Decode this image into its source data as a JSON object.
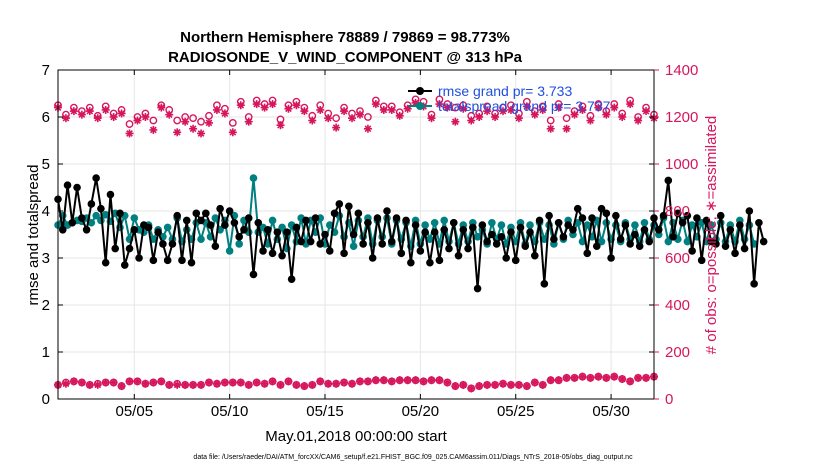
{
  "chart_data": {
    "type": "line",
    "title": "Northern Hemisphere 78889 / 79869 = 98.773%",
    "subtitle": "RADIOSONDE_V_WIND_COMPONENT @ 313 hPa",
    "xlabel": "May.01,2018 00:00:00 start",
    "ylabel": "rmse and totalspread",
    "y2label": "# of obs: o=possible; ∗=assimilated",
    "footer": "data file: /Users/raeder/DAI/ATM_forcXX/CAM6_setup/f.e21.FHIST_BGC.f09_025.CAM6assim.011/Diags_NTrS_2018-05/obs_diag_output.nc",
    "xlim": [
      1,
      32.25
    ],
    "ylim": [
      0,
      7
    ],
    "y2lim": [
      0,
      1400
    ],
    "x_ticks": [
      5,
      10,
      15,
      20,
      25,
      30
    ],
    "x_tick_labels": [
      "05/05",
      "05/10",
      "05/15",
      "05/20",
      "05/25",
      "05/30"
    ],
    "y_ticks": [
      "0",
      "1",
      "2",
      "3",
      "4",
      "5",
      "6",
      "7"
    ],
    "y2_ticks": [
      "0",
      "200",
      "400",
      "600",
      "800",
      "1000",
      "1200",
      "1400"
    ],
    "legend_position": "top-right",
    "colors": {
      "rmse": "#000000",
      "spread": "#008080",
      "obs": "#d6165c",
      "legend_text": "#1f4fe0",
      "grid": "#e6e6e6"
    },
    "legend": [
      "rmse grand pr= 3.733",
      "totalspread grand pr= 3.737"
    ],
    "rmse": [
      4.25,
      3.6,
      4.55,
      3.75,
      4.5,
      3.85,
      3.6,
      4.15,
      4.7,
      4.05,
      2.9,
      4.35,
      3.2,
      3.95,
      2.85,
      3.2,
      3.6,
      3.0,
      3.7,
      3.65,
      2.95,
      3.55,
      3.3,
      2.95,
      3.3,
      3.9,
      2.95,
      3.8,
      2.9,
      3.95,
      3.8,
      3.95,
      3.7,
      3.25,
      4.05,
      3.7,
      4.0,
      3.75,
      3.45,
      3.6,
      3.85,
      2.65,
      3.75,
      3.15,
      3.6,
      3.1,
      3.55,
      3.05,
      3.55,
      2.55,
      3.65,
      3.35,
      3.8,
      3.35,
      3.85,
      3.3,
      3.5,
      3.15,
      3.95,
      4.15,
      3.1,
      4.1,
      3.5,
      3.95,
      3.3,
      3.75,
      3.0,
      3.85,
      3.3,
      4.0,
      3.35,
      3.85,
      3.1,
      3.8,
      2.9,
      3.7,
      3.15,
      3.55,
      2.9,
      3.55,
      2.95,
      3.6,
      3.2,
      3.75,
      3.05,
      3.6,
      3.2,
      3.65,
      2.35,
      3.7,
      3.35,
      3.5,
      3.3,
      3.45,
      3.0,
      3.55,
      2.95,
      3.65,
      3.25,
      3.55,
      3.05,
      3.8,
      2.45,
      3.9,
      3.4,
      3.75,
      3.45,
      3.7,
      3.6,
      4.05,
      3.85,
      3.1,
      3.85,
      3.25,
      4.05,
      3.95,
      3.0,
      3.9,
      3.4,
      3.7,
      3.3,
      3.5,
      3.25,
      3.6,
      3.35,
      3.85,
      3.6,
      3.9,
      4.65,
      3.45,
      3.95,
      3.75,
      3.9,
      3.15,
      3.85,
      2.95,
      3.8,
      3.35,
      3.3,
      3.9,
      3.25,
      3.6,
      3.1,
      3.7,
      3.2,
      4.0,
      2.45,
      3.75,
      3.35
    ],
    "spread": [
      3.7,
      3.9,
      3.7,
      3.75,
      3.8,
      3.78,
      3.85,
      3.75,
      3.9,
      3.8,
      3.92,
      3.78,
      3.95,
      3.65,
      3.9,
      3.4,
      3.85,
      3.6,
      3.55,
      3.7,
      3.4,
      3.6,
      3.45,
      3.65,
      3.4,
      3.85,
      3.35,
      3.6,
      3.4,
      3.75,
      3.4,
      3.75,
      3.45,
      3.85,
      3.6,
      3.8,
      3.15,
      3.9,
      3.3,
      3.8,
      3.55,
      4.7,
      3.55,
      3.65,
      3.3,
      3.8,
      3.4,
      3.65,
      3.2,
      3.7,
      3.35,
      3.85,
      3.3,
      3.8,
      3.55,
      3.85,
      3.3,
      3.7,
      3.55,
      3.9,
      3.45,
      3.75,
      3.25,
      3.8,
      3.45,
      3.85,
      3.3,
      3.8,
      3.45,
      3.85,
      3.3,
      3.8,
      3.4,
      3.75,
      3.25,
      3.8,
      3.3,
      3.7,
      3.4,
      3.75,
      3.3,
      3.8,
      3.35,
      3.75,
      3.3,
      3.7,
      3.35,
      3.75,
      3.45,
      3.6,
      3.3,
      3.75,
      3.4,
      3.7,
      3.3,
      3.65,
      3.35,
      3.75,
      3.3,
      3.7,
      3.35,
      3.75,
      3.4,
      3.7,
      3.3,
      3.75,
      3.4,
      3.8,
      3.5,
      3.75,
      3.35,
      3.7,
      3.45,
      3.8,
      3.35,
      3.75,
      3.4,
      3.7,
      3.35,
      3.75,
      3.4,
      3.7,
      3.35,
      3.75,
      3.4,
      3.7,
      3.5,
      3.85,
      3.35,
      3.75,
      3.4,
      3.8,
      3.35,
      3.7,
      3.45,
      3.75,
      3.35,
      3.7,
      3.4,
      3.75,
      3.35,
      3.7,
      3.35,
      3.8,
      3.4,
      3.7,
      3.3
    ],
    "obs_possible": [
      1250,
      1210,
      1240,
      1225,
      1240,
      1205,
      1245,
      1215,
      1230,
      1170,
      1200,
      1215,
      1185,
      1250,
      1230,
      1185,
      1200,
      1195,
      1180,
      1205,
      1250,
      1235,
      1175,
      1265,
      1200,
      1270,
      1255,
      1270,
      1190,
      1250,
      1265,
      1240,
      1205,
      1250,
      1215,
      1195,
      1240,
      1215,
      1225,
      1200,
      1270,
      1245,
      1245,
      1220,
      1250,
      1275,
      1265,
      1210,
      1275,
      1255,
      1240,
      1250,
      1205,
      1215,
      1245,
      1215,
      1240,
      1250,
      1215,
      1265,
      1225,
      1245,
      1185,
      1255,
      1195,
      1225,
      1245,
      1205,
      1255,
      1225,
      1255,
      1215,
      1270,
      1200,
      1240,
      1210
    ],
    "obs_assimilated": [
      1240,
      1195,
      1225,
      1210,
      1225,
      1195,
      1230,
      1200,
      1215,
      1130,
      1185,
      1200,
      1145,
      1240,
      1210,
      1135,
      1180,
      1150,
      1130,
      1175,
      1230,
      1215,
      1135,
      1250,
      1180,
      1255,
      1240,
      1255,
      1165,
      1235,
      1250,
      1225,
      1185,
      1230,
      1195,
      1155,
      1225,
      1195,
      1210,
      1150,
      1255,
      1230,
      1230,
      1205,
      1235,
      1260,
      1245,
      1195,
      1255,
      1240,
      1180,
      1235,
      1185,
      1200,
      1225,
      1200,
      1225,
      1230,
      1195,
      1245,
      1210,
      1230,
      1150,
      1240,
      1150,
      1210,
      1230,
      1185,
      1240,
      1210,
      1240,
      1200,
      1255,
      1185,
      1225,
      1195
    ],
    "obs_low_possible": [
      60,
      70,
      75,
      70,
      60,
      65,
      70,
      70,
      55,
      75,
      75,
      65,
      70,
      75,
      60,
      65,
      60,
      60,
      60,
      70,
      65,
      70,
      70,
      70,
      60,
      70,
      65,
      75,
      60,
      75,
      60,
      55,
      60,
      75,
      65,
      65,
      70,
      65,
      75,
      75,
      80,
      80,
      75,
      80,
      80,
      80,
      75,
      80,
      80,
      70,
      55,
      60,
      45,
      55,
      60,
      60,
      65,
      60,
      60,
      55,
      70,
      60,
      80,
      80,
      90,
      90,
      95,
      90,
      95,
      90,
      95,
      85,
      75,
      90,
      90,
      95
    ],
    "obs_low_assimilated": [
      60,
      65,
      75,
      70,
      60,
      60,
      70,
      70,
      55,
      75,
      75,
      65,
      70,
      75,
      60,
      60,
      60,
      60,
      60,
      70,
      65,
      70,
      70,
      70,
      60,
      70,
      65,
      75,
      60,
      75,
      60,
      55,
      60,
      75,
      65,
      65,
      70,
      65,
      75,
      75,
      80,
      80,
      75,
      80,
      80,
      80,
      75,
      80,
      80,
      70,
      55,
      60,
      45,
      55,
      60,
      60,
      65,
      60,
      60,
      55,
      70,
      60,
      80,
      80,
      90,
      90,
      95,
      90,
      95,
      90,
      95,
      85,
      75,
      90,
      90,
      95
    ]
  }
}
